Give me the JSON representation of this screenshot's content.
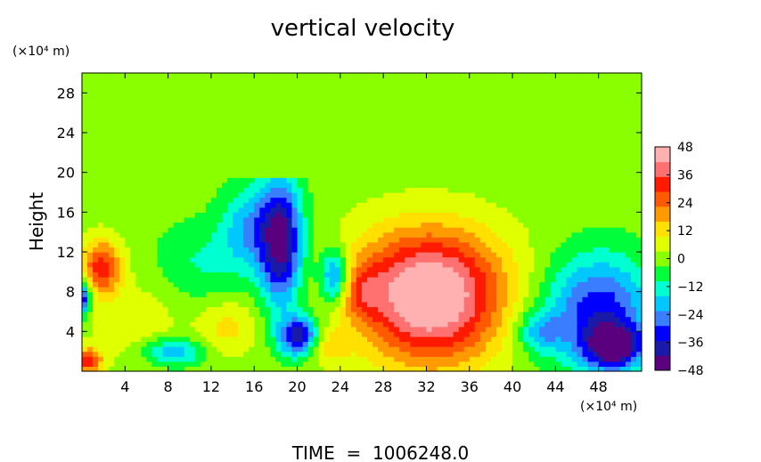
{
  "chart_data": {
    "type": "heatmap",
    "title": "vertical velocity",
    "ylabel": "Height",
    "x_unit": "(×10⁴ m)",
    "y_unit": "(×10⁴ m)",
    "footer": "TIME  =  1006248.0",
    "xlim": [
      0,
      52
    ],
    "ylim": [
      0,
      30
    ],
    "x_ticks": [
      4,
      8,
      12,
      16,
      20,
      24,
      28,
      32,
      36,
      40,
      44,
      48
    ],
    "y_ticks": [
      4,
      8,
      12,
      16,
      20,
      24,
      28
    ],
    "colorbar": {
      "range": [
        -48,
        48
      ],
      "tick_values": [
        48,
        36,
        24,
        12,
        0,
        -12,
        -24,
        -36,
        -48
      ],
      "tick_labels": [
        "48",
        "36",
        "24",
        "12",
        "0",
        "−12",
        "−24",
        "−36",
        "−48"
      ],
      "colors": [
        "#5a007f",
        "#1a1aa8",
        "#0000ff",
        "#3b7dff",
        "#00c8ff",
        "#00ffd0",
        "#00ff3a",
        "#8aff00",
        "#e0ff00",
        "#ffe000",
        "#ff9a00",
        "#ff5a00",
        "#ff1a00",
        "#ff7070",
        "#ffb0b0"
      ]
    },
    "features": [
      {
        "kind": "updraft",
        "x": 32.5,
        "y": 6.5,
        "sx": 4.5,
        "sy": 4.5,
        "value": 40
      },
      {
        "kind": "updraft",
        "x": 32,
        "y": 10,
        "sx": 5.5,
        "sy": 4,
        "value": 18
      },
      {
        "kind": "updraft",
        "x": 1.8,
        "y": 10.5,
        "sx": 1.3,
        "sy": 2.0,
        "value": 32
      },
      {
        "kind": "updraft",
        "x": 0.6,
        "y": 1.1,
        "sx": 0.9,
        "sy": 0.9,
        "value": 34
      },
      {
        "kind": "updraft",
        "x": 13.5,
        "y": 4.5,
        "sx": 2,
        "sy": 2,
        "value": 12
      },
      {
        "kind": "updraft",
        "x": 5,
        "y": 5,
        "sx": 3,
        "sy": 3,
        "value": 8
      },
      {
        "kind": "updraft",
        "x": 26,
        "y": 8,
        "sx": 1.5,
        "sy": 2,
        "value": 14
      },
      {
        "kind": "updraft",
        "x": 22.5,
        "y": 2.5,
        "sx": 1.5,
        "sy": 1.2,
        "value": 14
      },
      {
        "kind": "downdraft",
        "x": 18.5,
        "y": 13,
        "sx": 1.4,
        "sy": 4.5,
        "value": -45
      },
      {
        "kind": "downdraft",
        "x": 15.5,
        "y": 14.5,
        "sx": 1.8,
        "sy": 3,
        "value": -20
      },
      {
        "kind": "downdraft",
        "x": 20.2,
        "y": 3.5,
        "sx": 1.3,
        "sy": 1.4,
        "value": -42
      },
      {
        "kind": "downdraft",
        "x": 23.5,
        "y": 9.5,
        "sx": 1,
        "sy": 2,
        "value": -32
      },
      {
        "kind": "downdraft",
        "x": 48,
        "y": 6,
        "sx": 3.5,
        "sy": 4,
        "value": -34
      },
      {
        "kind": "downdraft",
        "x": 49.5,
        "y": 2.5,
        "sx": 1.8,
        "sy": 1.5,
        "value": -40
      },
      {
        "kind": "downdraft",
        "x": 0,
        "y": 7.5,
        "sx": 0.6,
        "sy": 1.2,
        "value": -40
      },
      {
        "kind": "downdraft",
        "x": 8.5,
        "y": 2,
        "sx": 2,
        "sy": 1,
        "value": -22
      },
      {
        "kind": "downdraft",
        "x": 11,
        "y": 11,
        "sx": 3,
        "sy": 3,
        "value": -10
      },
      {
        "kind": "downdraft",
        "x": 42.5,
        "y": 4,
        "sx": 1.5,
        "sy": 1.5,
        "value": -18
      }
    ]
  }
}
